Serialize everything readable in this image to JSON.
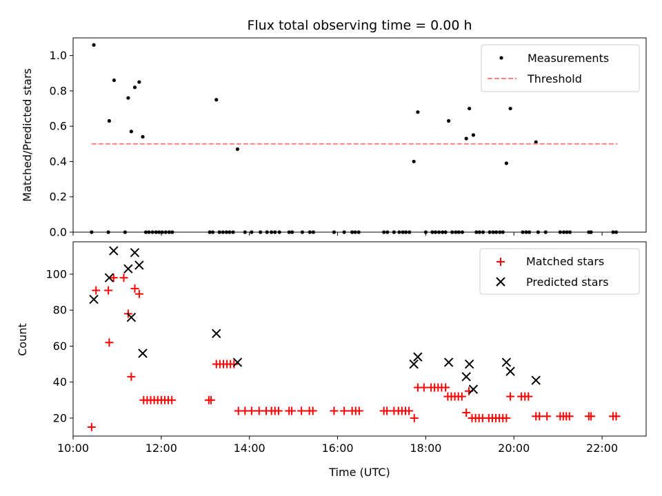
{
  "chart_data": [
    {
      "type": "scatter",
      "title": "Flux total observing time = 0.00 h",
      "xlabel": "",
      "ylabel": "Matched/Predicted stars",
      "xlim": [
        10.0,
        23.0
      ],
      "ylim": [
        0.0,
        1.1
      ],
      "yticks": [
        0.0,
        0.2,
        0.4,
        0.6,
        0.8,
        1.0
      ],
      "ytick_labels": [
        "0.0",
        "0.2",
        "0.4",
        "0.6",
        "0.8",
        "1.0"
      ],
      "legend_position": "top-right",
      "legend": [
        "Measurements",
        "Threshold"
      ],
      "series": [
        {
          "name": "Measurements",
          "marker": "dot",
          "color": "#000000",
          "points": [
            [
              10.42,
              0
            ],
            [
              10.47,
              1.06
            ],
            [
              10.8,
              0
            ],
            [
              10.82,
              0.63
            ],
            [
              10.93,
              0.86
            ],
            [
              11.18,
              0
            ],
            [
              11.25,
              0.76
            ],
            [
              11.32,
              0.57
            ],
            [
              11.4,
              0.82
            ],
            [
              11.5,
              0.85
            ],
            [
              11.58,
              0.54
            ],
            [
              11.65,
              0
            ],
            [
              11.72,
              0
            ],
            [
              11.8,
              0
            ],
            [
              11.88,
              0
            ],
            [
              11.95,
              0
            ],
            [
              12.02,
              0
            ],
            [
              12.1,
              0
            ],
            [
              12.18,
              0
            ],
            [
              12.25,
              0
            ],
            [
              13.1,
              0
            ],
            [
              13.17,
              0
            ],
            [
              13.25,
              0.75
            ],
            [
              13.32,
              0
            ],
            [
              13.4,
              0
            ],
            [
              13.48,
              0
            ],
            [
              13.55,
              0
            ],
            [
              13.63,
              0
            ],
            [
              13.73,
              0.47
            ],
            [
              13.9,
              0
            ],
            [
              14.05,
              0
            ],
            [
              14.25,
              0
            ],
            [
              14.4,
              0
            ],
            [
              14.5,
              0
            ],
            [
              14.58,
              0
            ],
            [
              14.68,
              0
            ],
            [
              14.9,
              0
            ],
            [
              14.97,
              0
            ],
            [
              15.2,
              0
            ],
            [
              15.37,
              0
            ],
            [
              15.45,
              0
            ],
            [
              15.92,
              0
            ],
            [
              16.15,
              0
            ],
            [
              16.33,
              0
            ],
            [
              16.4,
              0
            ],
            [
              16.48,
              0
            ],
            [
              17.05,
              0
            ],
            [
              17.13,
              0
            ],
            [
              17.28,
              0
            ],
            [
              17.4,
              0
            ],
            [
              17.48,
              0
            ],
            [
              17.55,
              0
            ],
            [
              17.63,
              0
            ],
            [
              17.73,
              0.4
            ],
            [
              17.82,
              0.68
            ],
            [
              18.0,
              0
            ],
            [
              18.15,
              0
            ],
            [
              18.22,
              0
            ],
            [
              18.3,
              0
            ],
            [
              18.38,
              0
            ],
            [
              18.45,
              0
            ],
            [
              18.52,
              0.63
            ],
            [
              18.6,
              0
            ],
            [
              18.68,
              0
            ],
            [
              18.75,
              0
            ],
            [
              18.83,
              0
            ],
            [
              18.92,
              0.53
            ],
            [
              18.99,
              0.7
            ],
            [
              19.08,
              0.55
            ],
            [
              19.15,
              0
            ],
            [
              19.22,
              0
            ],
            [
              19.3,
              0
            ],
            [
              19.45,
              0
            ],
            [
              19.53,
              0
            ],
            [
              19.6,
              0
            ],
            [
              19.68,
              0
            ],
            [
              19.75,
              0
            ],
            [
              19.83,
              0.39
            ],
            [
              19.92,
              0.7
            ],
            [
              20.2,
              0
            ],
            [
              20.28,
              0
            ],
            [
              20.35,
              0
            ],
            [
              20.5,
              0.51
            ],
            [
              20.55,
              0
            ],
            [
              20.72,
              0
            ],
            [
              21.05,
              0
            ],
            [
              21.13,
              0
            ],
            [
              21.2,
              0
            ],
            [
              21.27,
              0
            ],
            [
              21.7,
              0
            ],
            [
              21.75,
              0
            ],
            [
              22.25,
              0
            ],
            [
              22.32,
              0
            ]
          ]
        },
        {
          "name": "Threshold",
          "style": "dashed",
          "color": "#ff8080",
          "points": [
            [
              10.42,
              0.5
            ],
            [
              22.35,
              0.5
            ]
          ]
        }
      ]
    },
    {
      "type": "scatter",
      "title": "",
      "xlabel": "Time (UTC)",
      "ylabel": "Count",
      "xlim": [
        10.0,
        23.0
      ],
      "ylim": [
        10,
        118
      ],
      "yticks": [
        20,
        40,
        60,
        80,
        100
      ],
      "ytick_labels": [
        "20",
        "40",
        "60",
        "80",
        "100"
      ],
      "xticks": [
        10,
        12,
        14,
        16,
        18,
        20,
        22
      ],
      "xtick_labels": [
        "10:00",
        "12:00",
        "14:00",
        "16:00",
        "18:00",
        "20:00",
        "22:00"
      ],
      "legend_position": "top-right",
      "legend": [
        "Matched stars",
        "Predicted stars"
      ],
      "series": [
        {
          "name": "Matched stars",
          "marker": "plus",
          "color": "#ff0000",
          "points": [
            [
              10.42,
              15
            ],
            [
              10.52,
              91
            ],
            [
              10.8,
              91
            ],
            [
              10.82,
              62
            ],
            [
              10.92,
              98
            ],
            [
              11.15,
              98
            ],
            [
              11.25,
              78
            ],
            [
              11.32,
              43
            ],
            [
              11.4,
              92
            ],
            [
              11.5,
              89
            ],
            [
              11.6,
              30
            ],
            [
              11.68,
              30
            ],
            [
              11.76,
              30
            ],
            [
              11.84,
              30
            ],
            [
              11.92,
              30
            ],
            [
              12.0,
              30
            ],
            [
              12.08,
              30
            ],
            [
              12.16,
              30
            ],
            [
              12.24,
              30
            ],
            [
              13.08,
              30
            ],
            [
              13.13,
              30
            ],
            [
              13.25,
              50
            ],
            [
              13.33,
              50
            ],
            [
              13.41,
              50
            ],
            [
              13.49,
              50
            ],
            [
              13.57,
              50
            ],
            [
              13.65,
              50
            ],
            [
              13.75,
              24
            ],
            [
              13.9,
              24
            ],
            [
              14.05,
              24
            ],
            [
              14.22,
              24
            ],
            [
              14.38,
              24
            ],
            [
              14.5,
              24
            ],
            [
              14.58,
              24
            ],
            [
              14.66,
              24
            ],
            [
              14.9,
              24
            ],
            [
              14.96,
              24
            ],
            [
              15.18,
              24
            ],
            [
              15.36,
              24
            ],
            [
              15.44,
              24
            ],
            [
              15.92,
              24
            ],
            [
              16.15,
              24
            ],
            [
              16.33,
              24
            ],
            [
              16.41,
              24
            ],
            [
              16.49,
              24
            ],
            [
              17.05,
              24
            ],
            [
              17.12,
              24
            ],
            [
              17.28,
              24
            ],
            [
              17.38,
              24
            ],
            [
              17.46,
              24
            ],
            [
              17.54,
              24
            ],
            [
              17.62,
              24
            ],
            [
              17.74,
              20
            ],
            [
              17.82,
              37
            ],
            [
              17.96,
              37
            ],
            [
              18.12,
              37
            ],
            [
              18.2,
              37
            ],
            [
              18.28,
              37
            ],
            [
              18.36,
              37
            ],
            [
              18.45,
              37
            ],
            [
              18.5,
              32
            ],
            [
              18.58,
              32
            ],
            [
              18.66,
              32
            ],
            [
              18.74,
              32
            ],
            [
              18.82,
              32
            ],
            [
              18.92,
              23
            ],
            [
              18.98,
              35
            ],
            [
              19.05,
              20
            ],
            [
              19.13,
              20
            ],
            [
              19.21,
              20
            ],
            [
              19.29,
              20
            ],
            [
              19.43,
              20
            ],
            [
              19.51,
              20
            ],
            [
              19.59,
              20
            ],
            [
              19.67,
              20
            ],
            [
              19.75,
              20
            ],
            [
              19.83,
              20
            ],
            [
              19.92,
              32
            ],
            [
              20.17,
              32
            ],
            [
              20.25,
              32
            ],
            [
              20.33,
              32
            ],
            [
              20.5,
              21
            ],
            [
              20.58,
              21
            ],
            [
              20.75,
              21
            ],
            [
              21.05,
              21
            ],
            [
              21.12,
              21
            ],
            [
              21.19,
              21
            ],
            [
              21.26,
              21
            ],
            [
              21.7,
              21
            ],
            [
              21.75,
              21
            ],
            [
              22.25,
              21
            ],
            [
              22.32,
              21
            ]
          ]
        },
        {
          "name": "Predicted stars",
          "marker": "x",
          "color": "#000000",
          "points": [
            [
              10.47,
              86
            ],
            [
              10.82,
              98
            ],
            [
              10.92,
              113
            ],
            [
              11.25,
              103
            ],
            [
              11.32,
              76
            ],
            [
              11.4,
              112
            ],
            [
              11.5,
              105
            ],
            [
              11.58,
              56
            ],
            [
              13.25,
              67
            ],
            [
              13.73,
              51
            ],
            [
              17.73,
              50
            ],
            [
              17.82,
              54
            ],
            [
              18.52,
              51
            ],
            [
              18.92,
              43
            ],
            [
              18.99,
              50
            ],
            [
              19.08,
              36
            ],
            [
              19.83,
              51
            ],
            [
              19.92,
              46
            ],
            [
              20.5,
              41
            ]
          ]
        }
      ]
    }
  ]
}
